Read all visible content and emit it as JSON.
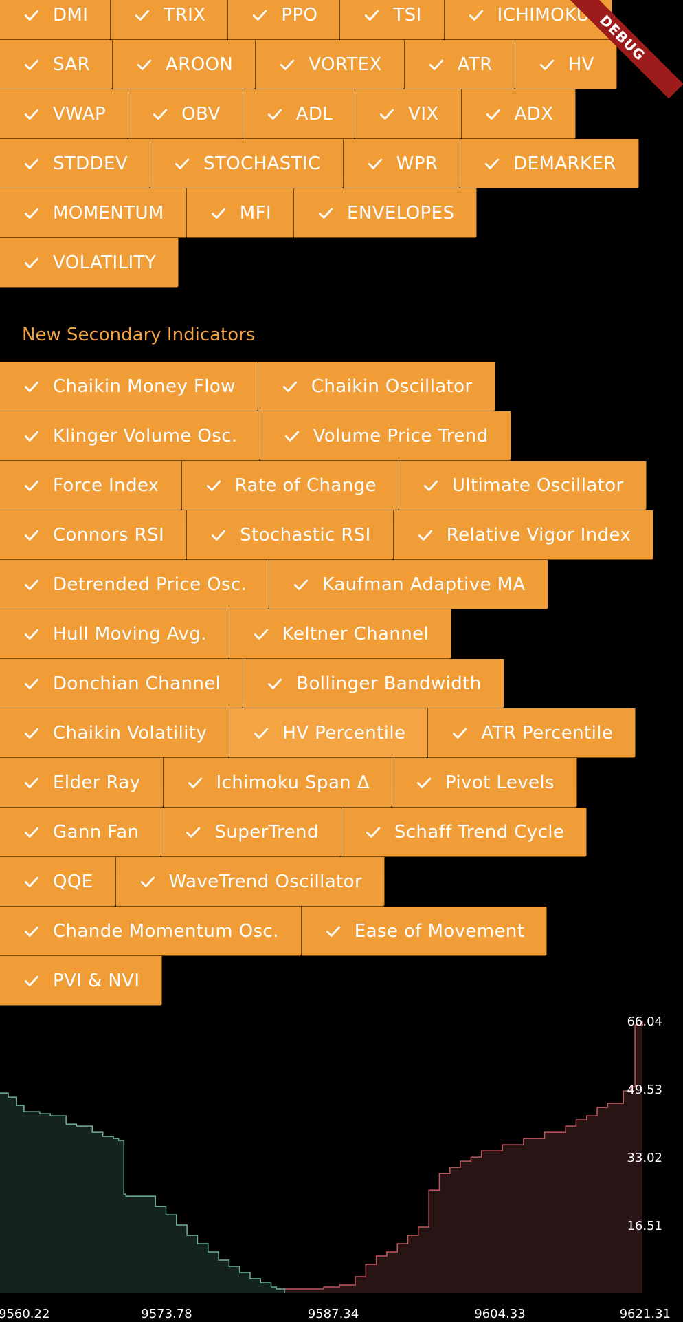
{
  "primary_indicators": [
    [
      "DMI",
      "TRIX",
      "PPO",
      "TSI",
      "ICHIMOKU"
    ],
    [
      "SAR",
      "AROON",
      "VORTEX",
      "ATR",
      "HV"
    ],
    [
      "VWAP",
      "OBV",
      "ADL",
      "VIX",
      "ADX"
    ],
    [
      "STDDEV",
      "STOCHASTIC",
      "WPR",
      "DEMARKER"
    ],
    [
      "MOMENTUM",
      "MFI",
      "ENVELOPES"
    ],
    [
      "VOLATILITY"
    ]
  ],
  "secondary_section_title": "New Secondary Indicators",
  "secondary_indicators": [
    [
      "Chaikin Money Flow",
      "Chaikin Oscillator"
    ],
    [
      "Klinger Volume Osc.",
      "Volume Price Trend"
    ],
    [
      "Force Index",
      "Rate of Change",
      "Ultimate Oscillator"
    ],
    [
      "Connors RSI",
      "Stochastic RSI",
      "Relative Vigor Index"
    ],
    [
      "Detrended Price Osc.",
      "Kaufman Adaptive MA"
    ],
    [
      "Hull Moving Avg.",
      "Keltner Channel"
    ],
    [
      "Donchian Channel",
      "Bollinger Bandwidth"
    ],
    [
      "Chaikin Volatility",
      "HV Percentile",
      "ATR Percentile"
    ],
    [
      "Elder Ray",
      "Ichimoku Span Δ",
      "Pivot Levels"
    ],
    [
      "Gann Fan",
      "SuperTrend",
      "Schaff Trend Cycle"
    ],
    [
      "QQE",
      "WaveTrend Oscillator"
    ],
    [
      "Chande Momentum Osc.",
      "Ease of Movement"
    ],
    [
      "PVI & NVI"
    ]
  ],
  "debug_banner": "DEBUG",
  "colors": {
    "chip_bg": "#f09d38",
    "section_title": "#f0a445",
    "bid_line": "#6fb39a",
    "bid_fill": "#14231d",
    "ask_line": "#c0585f",
    "ask_fill": "#281315"
  },
  "icons": {
    "chip_icon": "check-icon"
  },
  "chart_data": {
    "type": "area",
    "title": "",
    "x_tick_labels": [
      "9560.22",
      "9573.78",
      "9587.34",
      "9604.33",
      "9621.31"
    ],
    "y_tick_labels": [
      "66.04",
      "49.53",
      "33.02",
      "16.51"
    ],
    "xlim": [
      9560.22,
      9621.31
    ],
    "ylim": [
      0,
      66.04
    ],
    "series": [
      {
        "side": "bid",
        "x": [
          9560.22,
          9561.0,
          9561.8,
          9562.5,
          9564.0,
          9565.0,
          9566.5,
          9567.5,
          9569.0,
          9570.0,
          9571.0,
          9571.5,
          9572.0,
          9572.2,
          9575.0,
          9576.0,
          9577.0,
          9578.0,
          9579.0,
          9580.0,
          9581.0,
          9582.0,
          9583.0,
          9584.0,
          9585.0,
          9586.0,
          9586.5,
          9587.34
        ],
        "y": [
          48.5,
          47.5,
          45.5,
          44.0,
          43.5,
          43.0,
          41.0,
          40.5,
          39.0,
          38.0,
          37.5,
          37.0,
          24.0,
          23.5,
          21.0,
          19.0,
          16.5,
          14.0,
          12.0,
          10.0,
          8.0,
          6.5,
          5.0,
          3.5,
          2.5,
          1.5,
          1.0,
          0.0
        ]
      },
      {
        "side": "ask",
        "x": [
          9587.34,
          9589.0,
          9591.0,
          9592.5,
          9594.0,
          9595.0,
          9596.0,
          9597.0,
          9598.0,
          9599.0,
          9600.0,
          9601.0,
          9602.0,
          9603.0,
          9604.0,
          9605.0,
          9606.0,
          9608.0,
          9610.0,
          9612.0,
          9614.0,
          9615.0,
          9616.0,
          9617.0,
          9618.0,
          9619.5,
          9620.2,
          9620.6,
          9621.31
        ],
        "y": [
          1.0,
          1.0,
          1.5,
          2.0,
          4.0,
          7.0,
          9.0,
          10.0,
          12.0,
          14.0,
          16.0,
          25.0,
          29.0,
          30.5,
          32.0,
          33.0,
          34.5,
          36.0,
          37.5,
          39.0,
          40.5,
          42.0,
          43.0,
          45.0,
          46.0,
          49.0,
          50.0,
          65.0,
          66.04
        ]
      }
    ]
  }
}
